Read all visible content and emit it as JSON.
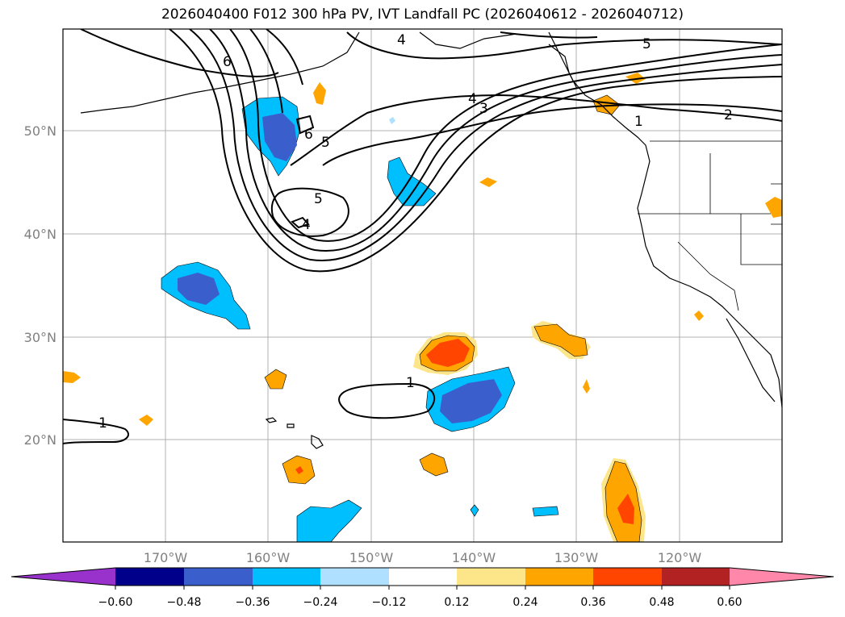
{
  "title": "2026040400 F012 300 hPa PV, IVT Landfall PC (2026040612 - 2026040712)",
  "map": {
    "lat_labels": [
      "50°N",
      "40°N",
      "30°N",
      "20°N"
    ],
    "lon_labels": [
      "170°W",
      "160°W",
      "150°W",
      "140°W",
      "130°W",
      "120°W"
    ],
    "contour_labels": [
      "6",
      "6",
      "5",
      "5",
      "4",
      "4",
      "3",
      "5",
      "2",
      "1",
      "1",
      "1",
      "4"
    ]
  },
  "colorbar": {
    "ticks": [
      "−0.60",
      "−0.48",
      "−0.36",
      "−0.24",
      "−0.12",
      "0.12",
      "0.24",
      "0.36",
      "0.48",
      "0.60"
    ],
    "colors": [
      "#9932cc",
      "#00008b",
      "#3a5fcd",
      "#00bfff",
      "#b0e0ff",
      "#ffffff",
      "#fde68a",
      "#ffa500",
      "#ff4500",
      "#b22222",
      "#ff88aa"
    ]
  }
}
